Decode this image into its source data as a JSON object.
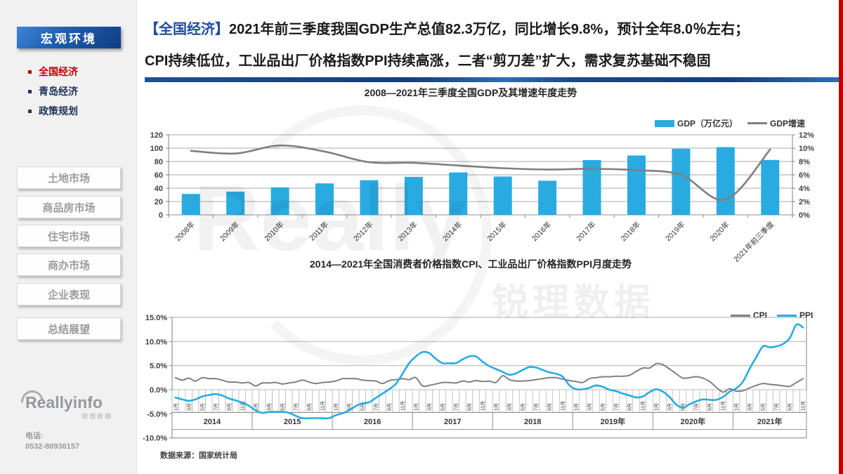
{
  "colors": {
    "accent_red": "#c00000",
    "brand_blue": "#1f4ea0",
    "bar_blue": "#29abe2",
    "line_gray": "#808080"
  },
  "sidebar": {
    "header": "宏观环境",
    "menu": [
      {
        "label": "全国经济",
        "active": true
      },
      {
        "label": "青岛经济",
        "active": false
      },
      {
        "label": "政策规划",
        "active": false
      }
    ],
    "buttons": [
      "土地市场",
      "商品房市场",
      "住宅市场",
      "商办市场",
      "企业表现",
      "总结展望"
    ],
    "logo": {
      "brand": "Reallyinfo",
      "sub": "锐理数据"
    },
    "contact": {
      "label": "电话:",
      "phone": "0532-80936157"
    }
  },
  "header": {
    "tag": "【全国经济】",
    "line1": "2021年前三季度我国GDP生产总值82.3万亿，同比增长9.8%，预计全年8.0％左右；",
    "line2": "CPI持续低位，工业品出厂价格指数PPI持续高涨，二者“剪刀差”扩大，需求复苏基础不稳固"
  },
  "source_note": "数据来源：国家统计局",
  "watermark": {
    "brand": "Really",
    "cn": "锐理数据"
  },
  "chart_data": [
    {
      "type": "bar",
      "title": "2008—2021年三季度全国GDP及其增速年度走势",
      "categories": [
        "2008年",
        "2009年",
        "2010年",
        "2011年",
        "2012年",
        "2013年",
        "2014年",
        "2015年",
        "2016年",
        "2017年",
        "2018年",
        "2019年",
        "2020年",
        "2021年前三季度"
      ],
      "series": [
        {
          "name": "GDP（万亿元）",
          "type": "bar",
          "axis": "left",
          "color": "#29abe2",
          "values": [
            31.4,
            34.9,
            41.2,
            47.2,
            52.0,
            57.0,
            63.6,
            57.5,
            51.2,
            82.1,
            89.0,
            99.1,
            101.6,
            82.3
          ]
        },
        {
          "name": "GDP增速",
          "type": "line",
          "axis": "right",
          "color": "#7f7f7f",
          "values": [
            9.6,
            9.2,
            10.4,
            9.5,
            7.9,
            7.8,
            7.4,
            7.0,
            6.8,
            6.9,
            6.7,
            6.0,
            2.3,
            9.8
          ]
        }
      ],
      "left_axis": {
        "min": 0,
        "max": 120,
        "step": 20,
        "labels": [
          "0",
          "20",
          "40",
          "60",
          "80",
          "100",
          "120"
        ]
      },
      "right_axis": {
        "min": 0,
        "max": 12,
        "step": 2,
        "labels": [
          "0%",
          "2%",
          "4%",
          "6%",
          "8%",
          "10%",
          "12%"
        ]
      },
      "grid": true,
      "legend_position": "top-right"
    },
    {
      "type": "line",
      "title": "2014—2021年全国消费者价格指数CPI、工业品出厂价格指数PPI月度走势",
      "y_axis": {
        "min": -10,
        "max": 15,
        "step": 5,
        "labels": [
          "15.0%",
          "10.0%",
          "5.0%",
          "0.0%",
          "-5.0%",
          "-10.0%"
        ],
        "values": [
          15,
          10,
          5,
          0,
          -5,
          -10
        ]
      },
      "month_labels": [
        "1月",
        "3月",
        "5月",
        "7月",
        "9月",
        "11月"
      ],
      "years": [
        {
          "label": "2014",
          "months": 12
        },
        {
          "label": "2015",
          "months": 12
        },
        {
          "label": "2016",
          "months": 12
        },
        {
          "label": "2017",
          "months": 12
        },
        {
          "label": "2018",
          "months": 12
        },
        {
          "label": "2019年",
          "months": 12
        },
        {
          "label": "2020年",
          "months": 12
        },
        {
          "label": "2021年",
          "months": 11
        }
      ],
      "series": [
        {
          "name": "CPI",
          "color": "#808080",
          "values": [
            2.5,
            2.0,
            2.4,
            1.8,
            2.5,
            2.3,
            2.3,
            2.0,
            1.6,
            1.6,
            1.4,
            1.5,
            0.8,
            1.4,
            1.4,
            1.5,
            1.2,
            1.4,
            1.6,
            2.0,
            1.6,
            1.3,
            1.5,
            1.6,
            1.8,
            2.3,
            2.3,
            2.3,
            2.0,
            1.9,
            1.8,
            1.3,
            1.9,
            2.1,
            2.3,
            2.1,
            2.5,
            0.8,
            0.9,
            1.2,
            1.5,
            1.5,
            1.4,
            1.8,
            1.6,
            1.9,
            1.7,
            1.8,
            1.5,
            2.9,
            2.1,
            1.8,
            1.8,
            1.9,
            2.1,
            2.3,
            2.5,
            2.5,
            2.2,
            1.9,
            1.7,
            1.5,
            2.3,
            2.5,
            2.7,
            2.7,
            2.8,
            2.8,
            3.0,
            3.8,
            4.5,
            4.5,
            5.4,
            5.2,
            4.3,
            3.3,
            2.4,
            2.5,
            2.7,
            2.4,
            1.7,
            0.5,
            -0.5,
            0.2,
            -0.3,
            -0.2,
            0.4,
            0.9,
            1.3,
            1.1,
            1.0,
            0.8,
            0.7,
            1.5,
            2.3
          ]
        },
        {
          "name": "PPI",
          "color": "#29abe2",
          "values": [
            -1.6,
            -2.0,
            -2.3,
            -2.0,
            -1.4,
            -1.1,
            -0.9,
            -1.2,
            -1.8,
            -2.2,
            -2.7,
            -3.3,
            -4.3,
            -4.8,
            -4.6,
            -4.6,
            -4.6,
            -4.8,
            -5.4,
            -5.9,
            -5.9,
            -5.9,
            -5.9,
            -5.9,
            -5.3,
            -4.9,
            -4.3,
            -3.4,
            -2.8,
            -2.6,
            -1.7,
            -0.8,
            0.1,
            1.2,
            3.3,
            5.5,
            6.9,
            7.8,
            7.6,
            6.4,
            5.5,
            5.5,
            5.5,
            6.3,
            6.9,
            6.9,
            5.8,
            4.9,
            4.3,
            3.7,
            3.1,
            3.4,
            4.1,
            4.7,
            4.6,
            4.1,
            3.6,
            3.3,
            2.7,
            0.9,
            0.1,
            0.1,
            0.4,
            0.9,
            0.6,
            0.0,
            -0.3,
            -0.8,
            -1.2,
            -1.6,
            -1.4,
            -0.5,
            0.1,
            -0.4,
            -1.5,
            -3.1,
            -3.7,
            -3.0,
            -2.4,
            -2.0,
            -2.1,
            -2.1,
            -1.5,
            -0.4,
            0.3,
            1.7,
            4.4,
            6.8,
            9.0,
            8.8,
            9.0,
            9.5,
            10.7,
            13.5,
            12.9
          ]
        }
      ],
      "grid": true,
      "legend_position": "top-right"
    }
  ]
}
